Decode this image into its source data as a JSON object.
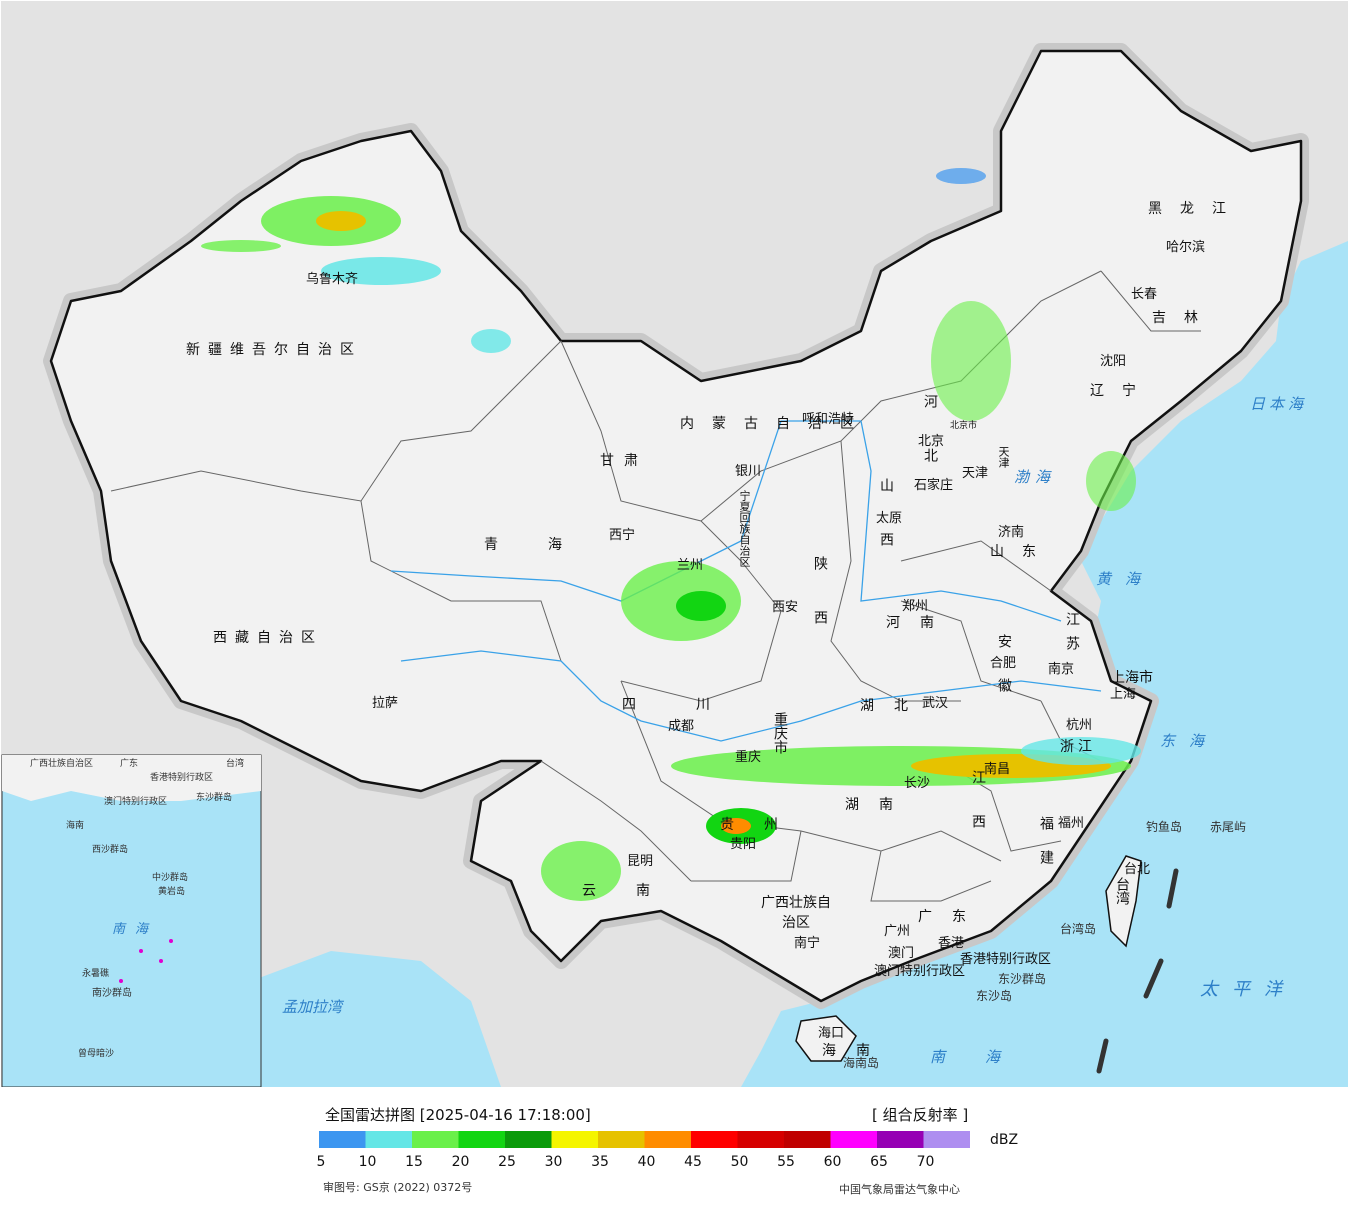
{
  "map": {
    "region_labels": [
      "新疆维吾尔自治区",
      "西藏自治区",
      "青海",
      "甘肃",
      "内蒙古自治区",
      "黑龙江",
      "吉林",
      "辽宁",
      "河北",
      "山西",
      "陕西",
      "宁夏回族自治区",
      "山东",
      "河南",
      "江苏",
      "安徽",
      "湖北",
      "四川",
      "重庆市",
      "贵州",
      "云南",
      "湖南",
      "江西",
      "浙江",
      "福建",
      "广东",
      "广西壮族自治区",
      "海南",
      "台湾",
      "上海市",
      "北京市",
      "天津",
      "香港特别行政区",
      "澳门特别行政区"
    ],
    "cities": [
      "乌鲁木齐",
      "拉萨",
      "西宁",
      "兰州",
      "银川",
      "呼和浩特",
      "哈尔滨",
      "长春",
      "沈阳",
      "北京",
      "天津",
      "石家庄",
      "太原",
      "济南",
      "郑州",
      "西安",
      "成都",
      "重庆",
      "武汉",
      "合肥",
      "南京",
      "上海",
      "杭州",
      "南昌",
      "长沙",
      "贵阳",
      "昆明",
      "南宁",
      "广州",
      "香港",
      "澳门",
      "福州",
      "台北",
      "海口"
    ],
    "sea_labels": [
      "日本海",
      "渤海",
      "黄海",
      "东海",
      "太平洋",
      "南海",
      "孟加拉湾"
    ],
    "islands": [
      "钓鱼岛",
      "赤尾屿",
      "台湾岛",
      "东沙群岛",
      "海南岛",
      "东沙岛"
    ],
    "inset_labels": [
      "广西壮族自治区",
      "广东",
      "香港特别行政区",
      "澳门特别行政区",
      "台湾",
      "海南",
      "东沙群岛",
      "西沙群岛",
      "中沙群岛",
      "黄岩岛",
      "南海",
      "南沙群岛",
      "永暑礁",
      "曾母暗沙"
    ]
  },
  "legend": {
    "title": "全国雷达拼图 [2025-04-16 17:18:00]",
    "product": "[ 组合反射率 ]",
    "unit": "dBZ",
    "approval": "审图号: GS京 (2022) 0372号",
    "source": "中国气象局雷达气象中心",
    "colors": [
      "#3c96f0",
      "#64e6e6",
      "#6af04a",
      "#12d512",
      "#0a9a0a",
      "#f5f500",
      "#e6c200",
      "#ff8c00",
      "#ff0000",
      "#d60000",
      "#c00000",
      "#ff00ff",
      "#9600b4",
      "#ae8ef0"
    ],
    "ticks": [
      "5",
      "10",
      "15",
      "20",
      "25",
      "30",
      "35",
      "40",
      "45",
      "50",
      "55",
      "60",
      "65",
      "70"
    ]
  },
  "colors": {
    "sea": "#a9e3f7",
    "land": "#f2f2f2",
    "foreign": "#e3e3e3",
    "border": "#111111",
    "river": "#3aa2e8"
  }
}
